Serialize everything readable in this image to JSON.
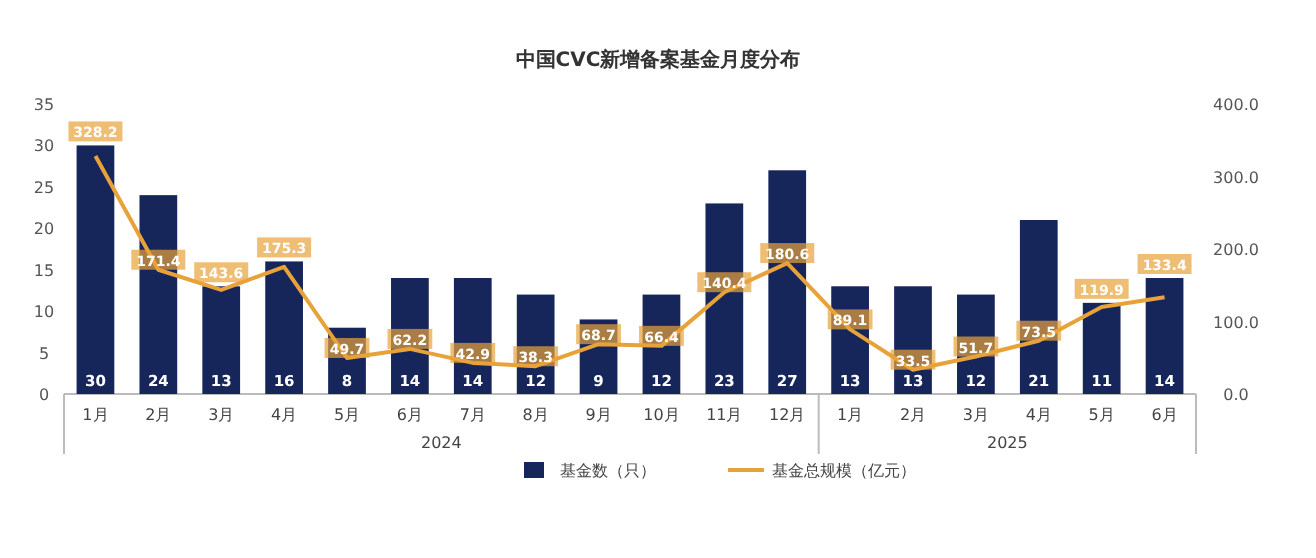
{
  "chart_data": {
    "type": "bar",
    "title": "中国CVC新增备案基金月度分布",
    "categories": [
      "1月",
      "2月",
      "3月",
      "4月",
      "5月",
      "6月",
      "7月",
      "8月",
      "9月",
      "10月",
      "11月",
      "12月",
      "1月",
      "2月",
      "3月",
      "4月",
      "5月",
      "6月"
    ],
    "series": [
      {
        "name": "基金数（只）",
        "color": "#16265a",
        "values": [
          30,
          24,
          13,
          16,
          8,
          14,
          14,
          12,
          9,
          12,
          23,
          27,
          13,
          13,
          12,
          21,
          11,
          14
        ]
      },
      {
        "name": "基金总规模（亿元）",
        "type": "line",
        "axis": "y2",
        "color": "#e8a23a",
        "values": [
          328.2,
          171.4,
          143.6,
          175.3,
          49.7,
          62.2,
          42.9,
          38.3,
          68.7,
          66.4,
          140.4,
          180.6,
          89.1,
          33.5,
          51.7,
          73.5,
          119.9,
          133.4
        ]
      }
    ],
    "ylim": [
      0,
      35
    ],
    "yticks": [
      0,
      5,
      10,
      15,
      20,
      25,
      30,
      35
    ],
    "y2lim": [
      0,
      400
    ],
    "y2ticks": [
      {
        "value": 0,
        "label": "0.0"
      },
      {
        "value": 100,
        "label": "100.0"
      },
      {
        "value": 200,
        "label": "200.0"
      },
      {
        "value": 300,
        "label": "300.0"
      },
      {
        "value": 400,
        "label": "400.0"
      }
    ],
    "data_labels": true,
    "legend": "bottom",
    "grid": false,
    "annotations": [
      "2024",
      "2025"
    ]
  }
}
